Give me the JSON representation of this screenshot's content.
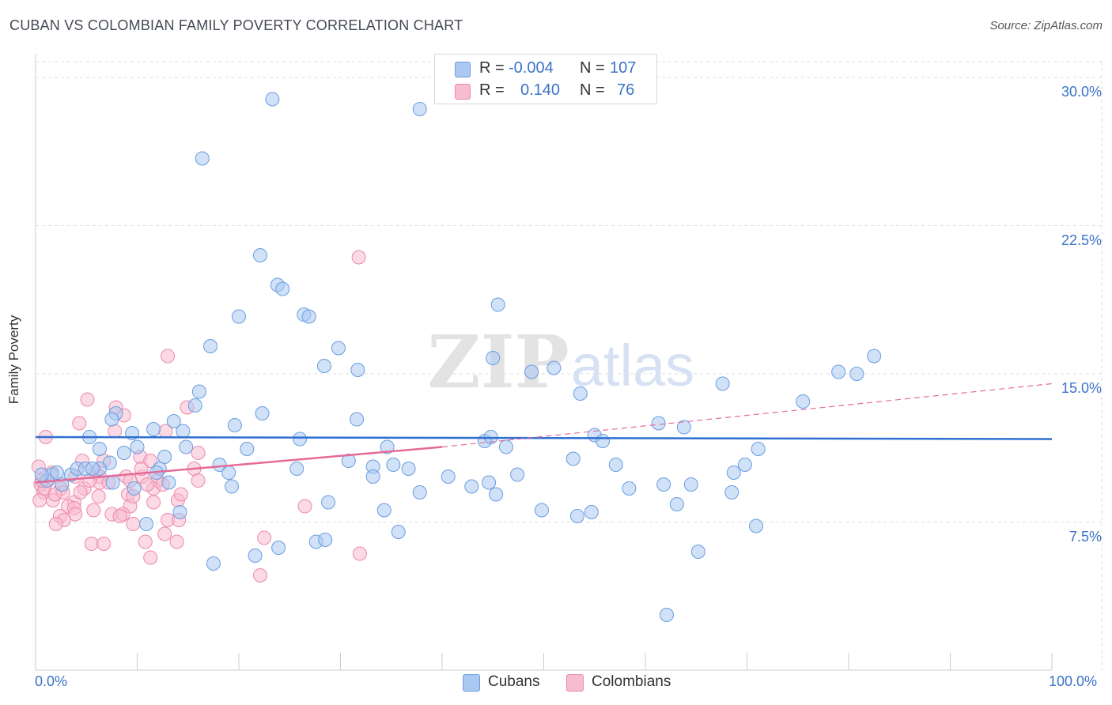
{
  "title": "CUBAN VS COLOMBIAN FAMILY POVERTY CORRELATION CHART",
  "source": "Source: ZipAtlas.com",
  "watermark": {
    "zip": "ZIP",
    "atlas": "atlas"
  },
  "colors": {
    "cubans_fill": "#aac8f2",
    "cubans_stroke": "#6a9ee0",
    "cubans_line": "#2f6fd0",
    "colombians_fill": "#f7bcd0",
    "colombians_stroke": "#ec89aa",
    "colombians_line": "#e56a97",
    "value_text": "#3b73c8",
    "grid": "#dddddd"
  },
  "legend": {
    "rows": [
      {
        "r_label": "R =",
        "r_value": "-0.004",
        "n_label": "N =",
        "n_value": "107"
      },
      {
        "r_label": "R =",
        "r_value": "0.140",
        "n_label": "N =",
        "n_value": "76"
      }
    ],
    "series": [
      "Cubans",
      "Colombians"
    ]
  },
  "chart_data": {
    "type": "scatter",
    "title": "CUBAN VS COLOMBIAN FAMILY POVERTY CORRELATION CHART",
    "xlabel": "",
    "ylabel": "Family Poverty",
    "xlim": [
      0,
      100
    ],
    "ylim": [
      0,
      30.8
    ],
    "x_tick_labels": [
      "0.0%",
      "100.0%"
    ],
    "y_ticks": [
      7.5,
      15.0,
      22.5,
      30.0
    ],
    "y_tick_labels": [
      "7.5%",
      "15.0%",
      "22.5%",
      "30.0%"
    ],
    "grid": true,
    "legend_position": "top-center",
    "series": [
      {
        "name": "Cubans",
        "trend": {
          "x": [
            0,
            100
          ],
          "y": [
            11.8,
            11.7
          ],
          "style": "solid"
        },
        "points": [
          [
            23.3,
            28.9
          ],
          [
            37.8,
            28.4
          ],
          [
            16.4,
            25.9
          ],
          [
            22.1,
            21.0
          ],
          [
            23.8,
            19.5
          ],
          [
            24.3,
            19.3
          ],
          [
            26.4,
            18.0
          ],
          [
            26.9,
            17.9
          ],
          [
            20.0,
            17.9
          ],
          [
            45.5,
            18.5
          ],
          [
            17.2,
            16.4
          ],
          [
            29.8,
            16.3
          ],
          [
            28.4,
            15.4
          ],
          [
            31.7,
            15.2
          ],
          [
            45.0,
            15.8
          ],
          [
            48.8,
            15.1
          ],
          [
            51.0,
            15.3
          ],
          [
            67.6,
            14.5
          ],
          [
            53.6,
            14.0
          ],
          [
            16.1,
            14.1
          ],
          [
            7.9,
            13.0
          ],
          [
            15.7,
            13.4
          ],
          [
            22.3,
            13.0
          ],
          [
            19.6,
            12.4
          ],
          [
            31.6,
            12.7
          ],
          [
            61.3,
            12.5
          ],
          [
            63.8,
            12.3
          ],
          [
            75.5,
            13.6
          ],
          [
            80.8,
            15.0
          ],
          [
            79.0,
            15.1
          ],
          [
            82.5,
            15.9
          ],
          [
            7.5,
            12.7
          ],
          [
            13.6,
            12.6
          ],
          [
            14.5,
            12.1
          ],
          [
            11.6,
            12.2
          ],
          [
            9.5,
            12.0
          ],
          [
            5.3,
            11.8
          ],
          [
            10.0,
            11.3
          ],
          [
            8.7,
            11.0
          ],
          [
            6.3,
            11.2
          ],
          [
            20.8,
            11.2
          ],
          [
            26.0,
            11.7
          ],
          [
            34.6,
            11.3
          ],
          [
            44.2,
            11.6
          ],
          [
            44.8,
            11.8
          ],
          [
            46.3,
            11.3
          ],
          [
            55.0,
            11.9
          ],
          [
            55.8,
            11.6
          ],
          [
            71.1,
            11.2
          ],
          [
            12.7,
            10.8
          ],
          [
            14.8,
            11.3
          ],
          [
            7.3,
            10.5
          ],
          [
            18.1,
            10.4
          ],
          [
            19.0,
            10.0
          ],
          [
            25.7,
            10.2
          ],
          [
            30.8,
            10.6
          ],
          [
            33.2,
            10.3
          ],
          [
            35.2,
            10.4
          ],
          [
            36.7,
            10.2
          ],
          [
            40.6,
            9.8
          ],
          [
            52.9,
            10.7
          ],
          [
            57.1,
            10.4
          ],
          [
            68.7,
            10.0
          ],
          [
            69.8,
            10.4
          ],
          [
            1.1,
            9.6
          ],
          [
            1.6,
            9.9
          ],
          [
            2.6,
            9.4
          ],
          [
            3.5,
            9.9
          ],
          [
            4.1,
            10.2
          ],
          [
            4.9,
            10.2
          ],
          [
            6.3,
            10.2
          ],
          [
            12.2,
            10.2
          ],
          [
            5.6,
            10.2
          ],
          [
            9.7,
            9.2
          ],
          [
            11.9,
            10.0
          ],
          [
            13.1,
            9.5
          ],
          [
            7.6,
            9.5
          ],
          [
            19.3,
            9.3
          ],
          [
            33.2,
            9.8
          ],
          [
            42.9,
            9.3
          ],
          [
            44.6,
            9.5
          ],
          [
            47.4,
            9.9
          ],
          [
            58.4,
            9.2
          ],
          [
            61.8,
            9.4
          ],
          [
            64.5,
            9.4
          ],
          [
            37.8,
            9.0
          ],
          [
            45.3,
            8.9
          ],
          [
            49.8,
            8.1
          ],
          [
            54.7,
            8.0
          ],
          [
            53.3,
            7.8
          ],
          [
            63.1,
            8.4
          ],
          [
            68.5,
            9.0
          ],
          [
            28.8,
            8.5
          ],
          [
            34.3,
            8.1
          ],
          [
            14.2,
            8.0
          ],
          [
            10.9,
            7.4
          ],
          [
            35.7,
            7.0
          ],
          [
            23.9,
            6.2
          ],
          [
            27.6,
            6.5
          ],
          [
            28.5,
            6.6
          ],
          [
            21.6,
            5.8
          ],
          [
            17.5,
            5.4
          ],
          [
            65.2,
            6.0
          ],
          [
            70.9,
            7.3
          ],
          [
            62.1,
            2.8
          ],
          [
            0.6,
            9.9
          ],
          [
            2.1,
            10.0
          ]
        ]
      },
      {
        "name": "Colombians",
        "trend": {
          "x": [
            0,
            40,
            100
          ],
          "y": [
            9.5,
            11.3,
            14.5
          ],
          "style": "solid-then-dashed"
        },
        "points": [
          [
            31.8,
            20.9
          ],
          [
            13.0,
            15.9
          ],
          [
            5.1,
            13.7
          ],
          [
            7.9,
            13.3
          ],
          [
            8.7,
            12.9
          ],
          [
            14.9,
            13.3
          ],
          [
            4.3,
            12.5
          ],
          [
            12.8,
            12.1
          ],
          [
            7.8,
            12.1
          ],
          [
            1.0,
            11.8
          ],
          [
            16.0,
            11.0
          ],
          [
            10.3,
            10.8
          ],
          [
            11.3,
            10.6
          ],
          [
            6.7,
            10.6
          ],
          [
            15.6,
            10.2
          ],
          [
            0.3,
            10.3
          ],
          [
            1.6,
            10.0
          ],
          [
            1.2,
            9.6
          ],
          [
            5.9,
            10.0
          ],
          [
            3.9,
            9.8
          ],
          [
            6.3,
            9.8
          ],
          [
            8.9,
            9.8
          ],
          [
            10.5,
            9.8
          ],
          [
            0.5,
            9.4
          ],
          [
            6.3,
            9.5
          ],
          [
            9.3,
            9.6
          ],
          [
            12.0,
            9.6
          ],
          [
            16.0,
            9.6
          ],
          [
            4.8,
            9.2
          ],
          [
            2.5,
            9.2
          ],
          [
            11.6,
            9.2
          ],
          [
            12.5,
            9.4
          ],
          [
            0.8,
            9.0
          ],
          [
            2.7,
            9.0
          ],
          [
            6.2,
            8.8
          ],
          [
            9.1,
            8.9
          ],
          [
            14.0,
            8.6
          ],
          [
            0.4,
            8.6
          ],
          [
            1.7,
            8.6
          ],
          [
            3.8,
            8.5
          ],
          [
            3.2,
            8.3
          ],
          [
            3.8,
            8.2
          ],
          [
            9.3,
            8.3
          ],
          [
            11.6,
            8.5
          ],
          [
            5.7,
            8.1
          ],
          [
            2.4,
            7.8
          ],
          [
            3.9,
            7.9
          ],
          [
            7.5,
            7.9
          ],
          [
            8.6,
            7.9
          ],
          [
            2.8,
            7.6
          ],
          [
            13.0,
            7.6
          ],
          [
            14.1,
            7.6
          ],
          [
            2.0,
            7.4
          ],
          [
            9.6,
            7.4
          ],
          [
            8.3,
            7.8
          ],
          [
            26.5,
            8.3
          ],
          [
            12.7,
            6.9
          ],
          [
            5.5,
            6.4
          ],
          [
            6.7,
            6.4
          ],
          [
            10.8,
            6.5
          ],
          [
            13.9,
            6.5
          ],
          [
            22.5,
            6.7
          ],
          [
            31.9,
            5.9
          ],
          [
            11.3,
            5.7
          ],
          [
            22.1,
            4.8
          ],
          [
            0.9,
            9.2
          ],
          [
            4.6,
            10.6
          ],
          [
            10.4,
            10.2
          ],
          [
            5.3,
            9.6
          ],
          [
            0.6,
            9.6
          ],
          [
            7.2,
            9.5
          ],
          [
            1.9,
            8.9
          ],
          [
            9.6,
            8.8
          ],
          [
            11.0,
            9.4
          ],
          [
            14.3,
            8.9
          ],
          [
            4.4,
            9.0
          ]
        ]
      }
    ]
  }
}
